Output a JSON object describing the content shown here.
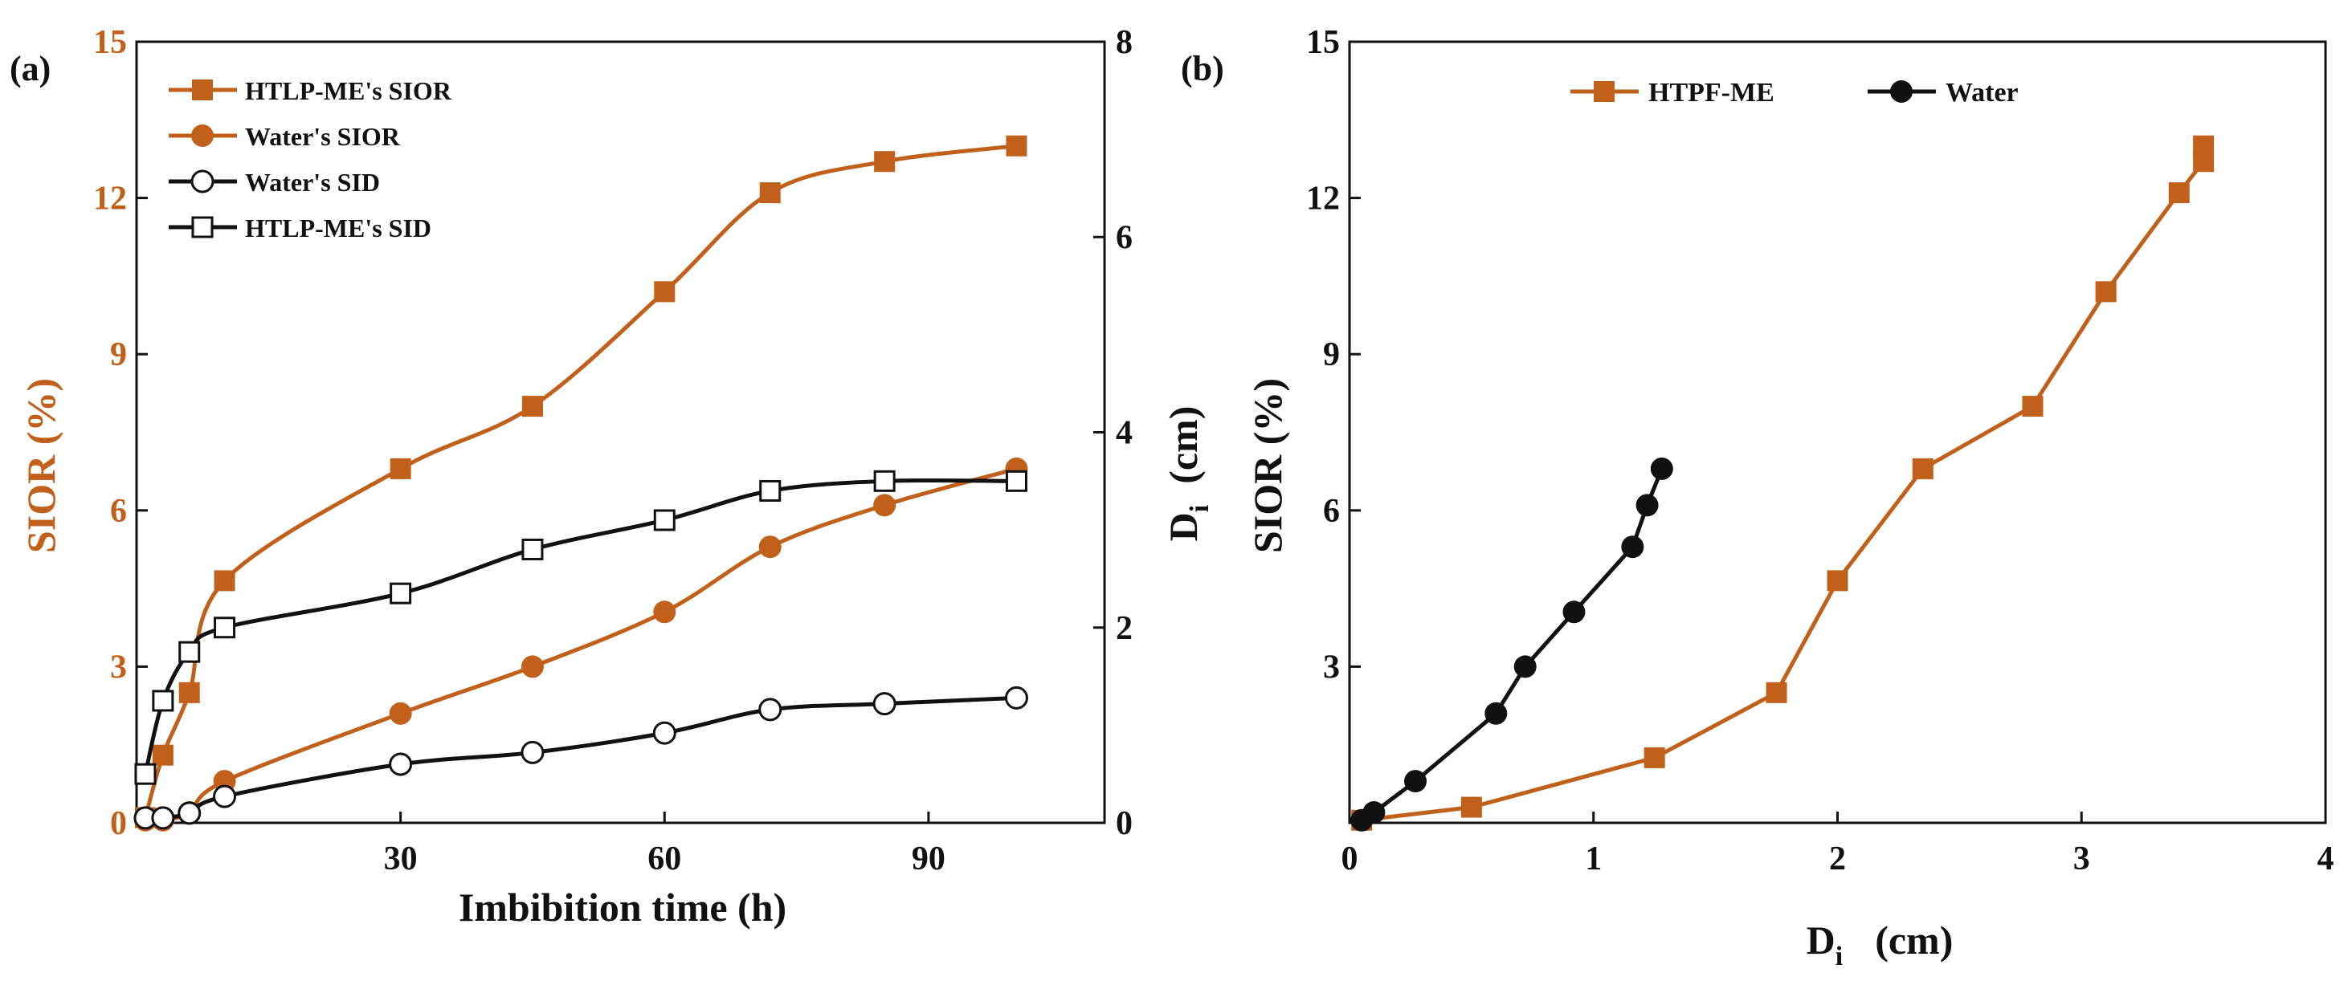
{
  "colors": {
    "sior": "#C0601A",
    "black": "#111111"
  },
  "chart_data": [
    {
      "panel": "(a)",
      "type": "line",
      "xlabel": "Imbibition time (h)",
      "ylabel_left": "SIOR (%)",
      "ylabel_right_main": "D",
      "ylabel_right_sub": "i",
      "ylabel_right_tail": "(cm)",
      "xlim": [
        0,
        110
      ],
      "ylim_left": [
        0,
        15
      ],
      "ylim_right": [
        0,
        8
      ],
      "xticks": [
        30,
        60,
        90
      ],
      "yticks_left": [
        0,
        3,
        6,
        9,
        12,
        15
      ],
      "yticks_right": [
        0,
        2,
        4,
        6,
        8
      ],
      "legend_position": "top-left",
      "series": [
        {
          "name": "HTLP-ME's SIOR",
          "axis": "left",
          "marker": "filled-square",
          "color": "#C0601A",
          "x": [
            1,
            3,
            6,
            10,
            30,
            45,
            60,
            72,
            85,
            100
          ],
          "y": [
            0.1,
            1.3,
            2.5,
            4.65,
            6.8,
            8.0,
            10.2,
            12.1,
            12.7,
            13.0
          ]
        },
        {
          "name": "Water's SIOR",
          "axis": "left",
          "marker": "filled-circle",
          "color": "#C0601A",
          "x": [
            1,
            3,
            6,
            10,
            30,
            45,
            60,
            72,
            85,
            100
          ],
          "y": [
            0.05,
            0.05,
            0.2,
            0.8,
            2.1,
            3.0,
            4.05,
            5.3,
            6.1,
            6.8
          ]
        },
        {
          "name": "Water's SID",
          "axis": "right",
          "marker": "open-circle",
          "color": "#111111",
          "x": [
            1,
            3,
            6,
            10,
            30,
            45,
            60,
            72,
            85,
            100
          ],
          "y": [
            0.05,
            0.05,
            0.1,
            0.27,
            0.6,
            0.72,
            0.92,
            1.16,
            1.22,
            1.28
          ]
        },
        {
          "name": "HTLP-ME's SID",
          "axis": "right",
          "marker": "open-square",
          "color": "#111111",
          "x": [
            1,
            3,
            6,
            10,
            30,
            45,
            60,
            72,
            85,
            100
          ],
          "y": [
            0.5,
            1.25,
            1.75,
            2.0,
            2.35,
            2.8,
            3.1,
            3.4,
            3.5,
            3.5
          ]
        }
      ]
    },
    {
      "panel": "(b)",
      "type": "line",
      "xlabel_main": "D",
      "xlabel_sub": "i",
      "xlabel_tail": "(cm)",
      "ylabel": "SIOR (%)",
      "xlim": [
        0,
        4
      ],
      "ylim": [
        0,
        15
      ],
      "xticks": [
        0,
        1,
        2,
        3,
        4
      ],
      "yticks": [
        3,
        6,
        9,
        12,
        15
      ],
      "legend_position": "top-center",
      "series": [
        {
          "name": "HTPF-ME",
          "marker": "filled-square",
          "color": "#C0601A",
          "x": [
            0.05,
            0.5,
            1.25,
            1.75,
            2.0,
            2.35,
            2.8,
            3.1,
            3.4,
            3.5,
            3.5
          ],
          "y": [
            0.05,
            0.3,
            1.25,
            2.5,
            4.65,
            6.8,
            8.0,
            10.2,
            12.1,
            12.7,
            13.0
          ]
        },
        {
          "name": "Water",
          "marker": "filled-circle",
          "color": "#111111",
          "x": [
            0.05,
            0.1,
            0.27,
            0.6,
            0.72,
            0.92,
            1.16,
            1.22,
            1.28
          ],
          "y": [
            0.05,
            0.2,
            0.8,
            2.1,
            3.0,
            4.05,
            5.3,
            6.1,
            6.8
          ]
        }
      ]
    }
  ]
}
